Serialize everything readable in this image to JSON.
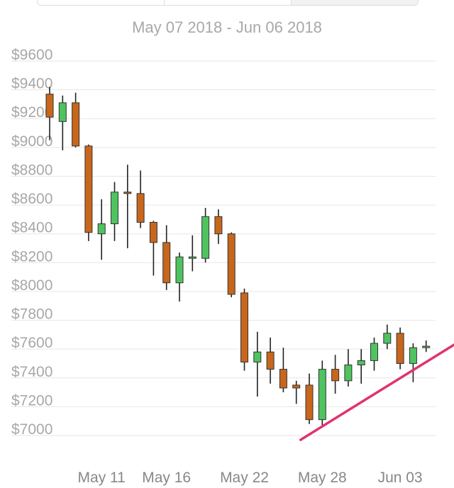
{
  "range_tabs": [
    {
      "label": "",
      "active": false
    },
    {
      "label": "",
      "active": false
    },
    {
      "label": "",
      "active": true
    }
  ],
  "chart_data": {
    "type": "candlestick",
    "subtitle": "May 07 2018 - Jun 06 2018",
    "title": "",
    "xlabel": "",
    "ylabel": "",
    "ylim": [
      6900,
      9700
    ],
    "y_ticks": [
      {
        "value": 9600,
        "label": "$9600"
      },
      {
        "value": 9400,
        "label": "$9400"
      },
      {
        "value": 9200,
        "label": "$9200"
      },
      {
        "value": 9000,
        "label": "$9000"
      },
      {
        "value": 8800,
        "label": "$8800"
      },
      {
        "value": 8600,
        "label": "$8600"
      },
      {
        "value": 8400,
        "label": "$8400"
      },
      {
        "value": 8200,
        "label": "$8200"
      },
      {
        "value": 8000,
        "label": "$8000"
      },
      {
        "value": 7800,
        "label": "$7800"
      },
      {
        "value": 7600,
        "label": "$7600"
      },
      {
        "value": 7400,
        "label": "$7400"
      },
      {
        "value": 7200,
        "label": "$7200"
      },
      {
        "value": 7000,
        "label": "$7000"
      }
    ],
    "x_ticks": [
      {
        "date": "2018-05-11",
        "label": "May 11"
      },
      {
        "date": "2018-05-16",
        "label": "May 16"
      },
      {
        "date": "2018-05-22",
        "label": "May 22"
      },
      {
        "date": "2018-05-28",
        "label": "May 28"
      },
      {
        "date": "2018-06-03",
        "label": "Jun 03"
      }
    ],
    "grid": true,
    "up_color": "#4fc35f",
    "down_color": "#c8661c",
    "wick_color": "#222222",
    "candles": [
      {
        "date": "2018-05-07",
        "open": 9370,
        "high": 9420,
        "low": 9050,
        "close": 9210
      },
      {
        "date": "2018-05-08",
        "open": 9180,
        "high": 9360,
        "low": 8980,
        "close": 9310
      },
      {
        "date": "2018-05-09",
        "open": 9310,
        "high": 9380,
        "low": 9000,
        "close": 9010
      },
      {
        "date": "2018-05-10",
        "open": 9010,
        "high": 9020,
        "low": 8350,
        "close": 8410
      },
      {
        "date": "2018-05-11",
        "open": 8400,
        "high": 8640,
        "low": 8220,
        "close": 8470
      },
      {
        "date": "2018-05-12",
        "open": 8470,
        "high": 8760,
        "low": 8350,
        "close": 8690
      },
      {
        "date": "2018-05-13",
        "open": 8690,
        "high": 8880,
        "low": 8300,
        "close": 8680
      },
      {
        "date": "2018-05-14",
        "open": 8680,
        "high": 8840,
        "low": 8440,
        "close": 8480
      },
      {
        "date": "2018-05-15",
        "open": 8480,
        "high": 8490,
        "low": 8110,
        "close": 8340
      },
      {
        "date": "2018-05-16",
        "open": 8340,
        "high": 8460,
        "low": 8010,
        "close": 8060
      },
      {
        "date": "2018-05-17",
        "open": 8060,
        "high": 8270,
        "low": 7930,
        "close": 8240
      },
      {
        "date": "2018-05-18",
        "open": 8230,
        "high": 8390,
        "low": 8140,
        "close": 8240
      },
      {
        "date": "2018-05-19",
        "open": 8230,
        "high": 8580,
        "low": 8200,
        "close": 8520
      },
      {
        "date": "2018-05-20",
        "open": 8520,
        "high": 8570,
        "low": 8330,
        "close": 8400
      },
      {
        "date": "2018-05-21",
        "open": 8400,
        "high": 8410,
        "low": 7960,
        "close": 7980
      },
      {
        "date": "2018-05-22",
        "open": 7990,
        "high": 8020,
        "low": 7450,
        "close": 7510
      },
      {
        "date": "2018-05-23",
        "open": 7510,
        "high": 7720,
        "low": 7270,
        "close": 7580
      },
      {
        "date": "2018-05-24",
        "open": 7580,
        "high": 7680,
        "low": 7360,
        "close": 7460
      },
      {
        "date": "2018-05-25",
        "open": 7460,
        "high": 7610,
        "low": 7300,
        "close": 7330
      },
      {
        "date": "2018-05-26",
        "open": 7350,
        "high": 7380,
        "low": 7220,
        "close": 7330
      },
      {
        "date": "2018-05-27",
        "open": 7350,
        "high": 7430,
        "low": 7080,
        "close": 7110
      },
      {
        "date": "2018-05-28",
        "open": 7110,
        "high": 7520,
        "low": 7060,
        "close": 7460
      },
      {
        "date": "2018-05-29",
        "open": 7460,
        "high": 7560,
        "low": 7290,
        "close": 7380
      },
      {
        "date": "2018-05-30",
        "open": 7380,
        "high": 7600,
        "low": 7340,
        "close": 7490
      },
      {
        "date": "2018-05-31",
        "open": 7490,
        "high": 7600,
        "low": 7360,
        "close": 7520
      },
      {
        "date": "2018-06-01",
        "open": 7520,
        "high": 7680,
        "low": 7450,
        "close": 7640
      },
      {
        "date": "2018-06-02",
        "open": 7640,
        "high": 7770,
        "low": 7600,
        "close": 7710
      },
      {
        "date": "2018-06-03",
        "open": 7710,
        "high": 7750,
        "low": 7460,
        "close": 7500
      },
      {
        "date": "2018-06-04",
        "open": 7500,
        "high": 7640,
        "low": 7370,
        "close": 7610
      },
      {
        "date": "2018-06-05",
        "open": 7610,
        "high": 7660,
        "low": 7580,
        "close": 7620
      }
    ],
    "trendline": {
      "color": "#e0336f",
      "start": {
        "date": "2018-05-26",
        "value": 6970
      },
      "end": {
        "date": "2018-06-07",
        "value": 7640
      }
    }
  }
}
